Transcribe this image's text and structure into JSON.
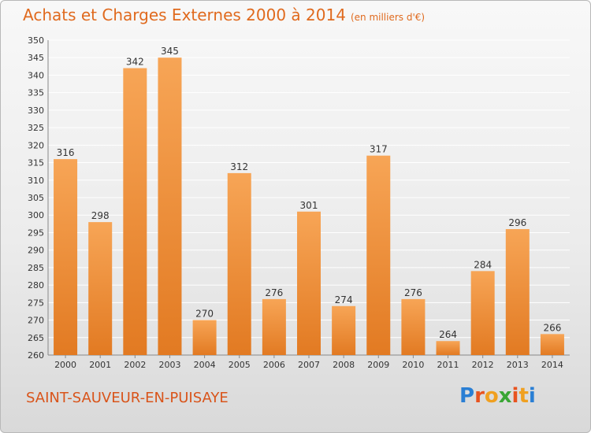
{
  "title": "Achats et Charges Externes 2000 à 2014",
  "unit": "(en milliers d'€)",
  "commune": "SAINT-SAUVEUR-EN-PUISAYE",
  "logo": {
    "text": "Proxiti",
    "letter_colors": [
      "#2a7fd4",
      "#e8531f",
      "#f0a020",
      "#3aa635",
      "#e8531f",
      "#f0a020"
    ]
  },
  "colors": {
    "bar_light": "#f7a556",
    "bar_dark": "#e27a22",
    "title": "#e06a1e",
    "grid": "#ffffff"
  },
  "chart_data": {
    "type": "bar",
    "categories": [
      "2000",
      "2001",
      "2002",
      "2003",
      "2004",
      "2005",
      "2006",
      "2007",
      "2008",
      "2009",
      "2010",
      "2011",
      "2012",
      "2013",
      "2014"
    ],
    "values": [
      316,
      298,
      342,
      345,
      270,
      312,
      276,
      301,
      274,
      317,
      276,
      264,
      284,
      296,
      266
    ],
    "ylim": [
      260,
      350
    ],
    "ytick_step": 5,
    "grid": true
  }
}
